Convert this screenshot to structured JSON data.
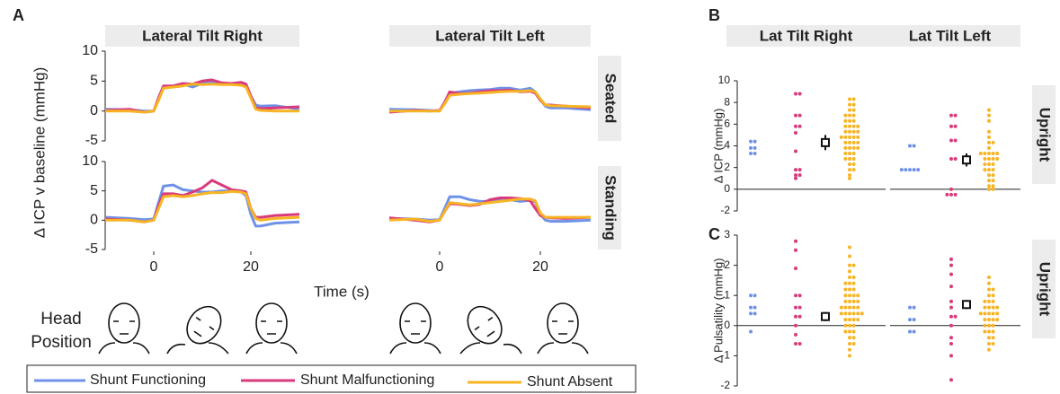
{
  "panel_labels": [
    "A",
    "B",
    "C"
  ],
  "panel_a_xlabel": "Time (s)",
  "head_position_label": [
    "Head",
    "Position"
  ],
  "chart_data": [
    {
      "type": "line",
      "title": "Lateral Tilt Right",
      "ylabel": "Δ ICP v baseline (mmHg)",
      "x": [
        -10,
        -5,
        -2,
        0,
        1,
        2,
        4,
        6,
        8,
        10,
        12,
        14,
        16,
        18,
        19,
        20,
        21,
        22,
        25,
        30
      ],
      "xlim": [
        -10,
        30
      ],
      "ylim": [
        -5,
        10
      ],
      "yticks": [
        -5,
        0,
        5,
        10
      ],
      "series": [
        {
          "name": "Shunt Functioning",
          "color": "#6f92e8",
          "values": [
            0.3,
            0.2,
            0,
            0,
            2,
            4,
            4.2,
            4.5,
            4,
            4.6,
            4.8,
            4.6,
            4.6,
            4.5,
            4.2,
            2.5,
            1,
            0.8,
            0.9,
            0.3
          ]
        },
        {
          "name": "Shunt Malfunctioning",
          "color": "#d93a7c",
          "values": [
            0.1,
            0.3,
            -0.2,
            0,
            2.2,
            4.2,
            4.2,
            4.6,
            4.5,
            5,
            5.2,
            4.7,
            4.6,
            4.8,
            4.5,
            2.5,
            0.5,
            0.4,
            0.5,
            0.7
          ]
        },
        {
          "name": "Shunt Absent",
          "color": "#f7b424",
          "values": [
            0,
            0,
            -0.2,
            0,
            1.8,
            3.8,
            4,
            4.2,
            4.5,
            4.4,
            4.5,
            4.4,
            4.4,
            4.3,
            4,
            2.2,
            0.3,
            0.1,
            0,
            0
          ]
        }
      ]
    },
    {
      "type": "line",
      "title": "Lateral Tilt Left",
      "row_label": "Seated",
      "x": [
        -10,
        -5,
        -2,
        0,
        1,
        2,
        4,
        6,
        8,
        10,
        12,
        14,
        16,
        18,
        19,
        20,
        21,
        22,
        25,
        30
      ],
      "xlim": [
        -10,
        30
      ],
      "ylim": [
        -5,
        10
      ],
      "series": [
        {
          "color": "#6f92e8",
          "values": [
            0.3,
            0.2,
            0.1,
            0,
            1.5,
            3,
            3.2,
            3.4,
            3.5,
            3.6,
            3.8,
            3.8,
            3.5,
            3.8,
            3.2,
            2,
            0.8,
            0.5,
            0.5,
            0.2
          ]
        },
        {
          "color": "#d93a7c",
          "values": [
            -0.2,
            0.1,
            0,
            0.1,
            1.4,
            3.2,
            2.9,
            3,
            3.2,
            3.4,
            3.4,
            3.5,
            3.2,
            3.3,
            3,
            1.8,
            1,
            1,
            0.8,
            0.5
          ]
        },
        {
          "color": "#f7b424",
          "values": [
            0,
            0,
            0,
            0,
            1.2,
            2.6,
            2.8,
            2.9,
            3,
            3.1,
            3.2,
            3.3,
            3.3,
            3.4,
            3.2,
            2,
            1,
            0.9,
            0.8,
            0.7
          ]
        }
      ]
    },
    {
      "type": "line",
      "x": [
        -10,
        -5,
        -2,
        0,
        1,
        2,
        4,
        6,
        8,
        10,
        12,
        14,
        16,
        18,
        19,
        20,
        21,
        22,
        25,
        30
      ],
      "xlim": [
        -10,
        30
      ],
      "xticks": [
        0,
        20
      ],
      "ylim": [
        -5,
        10
      ],
      "yticks": [
        -5,
        0,
        5,
        10
      ],
      "series": [
        {
          "color": "#6f92e8",
          "values": [
            0.5,
            0.3,
            0.1,
            0.2,
            3,
            5.8,
            6,
            5.2,
            5,
            4.8,
            4.8,
            5,
            5,
            4.8,
            4.2,
            1,
            -1,
            -1,
            -0.5,
            -0.3
          ]
        },
        {
          "color": "#d93a7c",
          "values": [
            0.2,
            0,
            -0.3,
            0,
            2.5,
            4.5,
            4.5,
            4.2,
            4.8,
            5.5,
            6.8,
            6,
            5.2,
            5,
            4.8,
            2,
            0.5,
            0.5,
            0.8,
            1
          ]
        },
        {
          "color": "#f7b424",
          "values": [
            0,
            0,
            -0.3,
            0,
            2,
            4,
            4.2,
            4,
            4.2,
            4.5,
            4.7,
            4.7,
            4.9,
            4.8,
            4.5,
            2,
            0.3,
            0,
            0.3,
            0.5
          ]
        }
      ]
    },
    {
      "type": "line",
      "row_label": "Standing",
      "x": [
        -10,
        -5,
        -2,
        0,
        1,
        2,
        4,
        6,
        8,
        10,
        12,
        14,
        16,
        18,
        19,
        20,
        21,
        22,
        25,
        30
      ],
      "xlim": [
        -10,
        30
      ],
      "xticks": [
        0,
        20
      ],
      "ylim": [
        -5,
        10
      ],
      "series": [
        {
          "color": "#6f92e8",
          "values": [
            0.3,
            0.2,
            0,
            0.1,
            2,
            4,
            4,
            3.5,
            3.2,
            3.2,
            3.5,
            3.5,
            3.2,
            3.4,
            3.1,
            1,
            0,
            -0.2,
            -0.2,
            0
          ]
        },
        {
          "color": "#d93a7c",
          "values": [
            0.4,
            0,
            -0.3,
            0,
            1.5,
            2.8,
            2.7,
            2.5,
            2.7,
            3.5,
            3.8,
            3.8,
            3.7,
            3.3,
            2,
            0.8,
            0.5,
            0.4,
            0.3,
            0.5
          ]
        },
        {
          "color": "#f7b424",
          "values": [
            0,
            0.2,
            -0.2,
            0,
            1.5,
            3,
            2.8,
            2.6,
            2.8,
            3,
            3.2,
            3.4,
            3.6,
            3.6,
            3.3,
            1.2,
            0.5,
            0.5,
            0.5,
            0.5
          ]
        }
      ]
    },
    {
      "type": "swarm",
      "title": "Lat Tilt Right",
      "ylabel": "Δ ICP (mmHg)",
      "ylim": [
        -2,
        10
      ],
      "yticks": [
        -2,
        0,
        2,
        4,
        6,
        8,
        10
      ],
      "series": [
        {
          "color": "#6f92e8",
          "values": [
            4.4,
            4.4,
            3.8,
            3.8,
            3.3,
            3.3
          ]
        },
        {
          "color": "#d93a7c",
          "values": [
            8.8,
            8.8,
            6.8,
            6.8,
            5.8,
            5.8,
            5.2,
            3.5,
            1.8,
            1.8,
            1.3,
            1.3,
            1.0
          ]
        },
        {
          "color": "#f7b424",
          "values": [
            8.3,
            8.3,
            7.8,
            7.8,
            7.3,
            7.3,
            6.8,
            6.8,
            6.8,
            6.3,
            6.3,
            6.3,
            5.8,
            5.8,
            5.8,
            5.8,
            5.3,
            5.3,
            5.3,
            5.3,
            4.8,
            4.8,
            4.8,
            4.8,
            4.8,
            4.3,
            4.3,
            4.3,
            4.3,
            3.8,
            3.8,
            3.8,
            3.8,
            3.3,
            3.3,
            3.3,
            2.8,
            2.8,
            2.8,
            2.3,
            2.3,
            1.8,
            1.8,
            1.3,
            1.0
          ]
        }
      ],
      "summary": {
        "value": 4.3,
        "error": 0.7
      }
    },
    {
      "type": "swarm",
      "title": "Lat Tilt Left",
      "row_label": "Upright",
      "ylim": [
        -2,
        10
      ],
      "series": [
        {
          "color": "#6f92e8",
          "values": [
            4.0,
            4.0,
            1.8,
            1.8,
            1.8,
            1.8,
            1.8
          ]
        },
        {
          "color": "#d93a7c",
          "values": [
            6.8,
            6.8,
            5.8,
            5.8,
            4.5,
            4.5,
            2.8,
            2.8,
            0,
            -0.5,
            -0.5,
            -0.5
          ]
        },
        {
          "color": "#f7b424",
          "values": [
            7.3,
            6.8,
            6.3,
            5.3,
            4.8,
            4.3,
            4.3,
            3.8,
            3.3,
            3.3,
            3.3,
            3.3,
            3.3,
            2.8,
            2.8,
            2.8,
            2.8,
            2.3,
            2.3,
            2.3,
            1.8,
            1.8,
            1.8,
            1.3,
            1.3,
            0.8,
            0.8,
            0.3,
            0.3,
            0,
            0
          ]
        }
      ],
      "summary": {
        "value": 2.7,
        "error": 0.6
      }
    },
    {
      "type": "swarm",
      "ylabel": "Δ Pulsatility (mmHg)",
      "ylim": [
        -2,
        3
      ],
      "yticks": [
        -2,
        -1,
        0,
        1,
        2,
        3
      ],
      "series": [
        {
          "color": "#6f92e8",
          "values": [
            1.0,
            1.0,
            0.6,
            0.6,
            0.4,
            0.4,
            -0.2
          ]
        },
        {
          "color": "#d93a7c",
          "values": [
            2.8,
            2.5,
            1.9,
            1.0,
            1.0,
            0.6,
            0.6,
            0.3,
            0.3,
            0,
            -0.3,
            -0.6,
            -0.6
          ]
        },
        {
          "color": "#f7b424",
          "values": [
            2.6,
            2.3,
            2.0,
            2.0,
            1.8,
            1.6,
            1.6,
            1.4,
            1.4,
            1.4,
            1.2,
            1.2,
            1.2,
            1.0,
            1.0,
            1.0,
            1.0,
            0.8,
            0.8,
            0.8,
            0.8,
            0.6,
            0.6,
            0.6,
            0.6,
            0.6,
            0.4,
            0.4,
            0.4,
            0.4,
            0.4,
            0.4,
            0.2,
            0.2,
            0.2,
            0.2,
            0,
            0,
            0,
            -0.2,
            -0.2,
            -0.2,
            -0.4,
            -0.4,
            -0.6,
            -0.6,
            -0.8,
            -1.0
          ]
        }
      ],
      "summary": {
        "value": 0.3,
        "error": 0.15
      }
    },
    {
      "type": "swarm",
      "row_label": "Upright",
      "ylim": [
        -2,
        3
      ],
      "series": [
        {
          "color": "#6f92e8",
          "values": [
            0.6,
            0.6,
            0.2,
            0.2,
            -0.2,
            -0.2
          ]
        },
        {
          "color": "#d93a7c",
          "values": [
            2.2,
            2.0,
            1.7,
            1.3,
            0.8,
            0.6,
            0.3,
            0.3,
            0,
            -0.4,
            -0.6,
            -1.0,
            -1.8
          ]
        },
        {
          "color": "#f7b424",
          "values": [
            1.6,
            1.4,
            1.2,
            1.2,
            1.0,
            1.0,
            0.8,
            0.8,
            0.8,
            0.6,
            0.6,
            0.6,
            0.6,
            0.4,
            0.4,
            0.4,
            0.4,
            0.4,
            0.2,
            0.2,
            0.2,
            0.2,
            0,
            0,
            0,
            -0.2,
            -0.2,
            -0.2,
            -0.4,
            -0.4,
            -0.6,
            -0.6,
            -0.8
          ]
        }
      ],
      "summary": {
        "value": 0.7,
        "error": 0.15
      }
    }
  ]
}
